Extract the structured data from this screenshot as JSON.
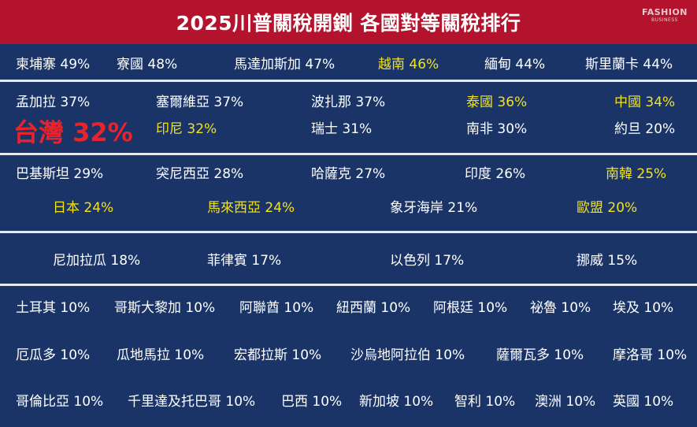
{
  "header": {
    "title": "2025川普關稅開鍘 各國對等關稅排行",
    "logo_line1": "FASHION",
    "logo_line2": "BUSINESS"
  },
  "colors": {
    "header_bg": "#b3132c",
    "panel_bg": "#1b3468",
    "highlight_yellow": "#f2e21b",
    "taiwan_red": "#e8232b",
    "divider": "#e6ebf2"
  },
  "sections": [
    {
      "rows": [
        [
          {
            "label": "柬埔寨 49%",
            "highlight": false
          },
          {
            "label": "寮國 48%",
            "highlight": false
          },
          {
            "label": "馬達加斯加 47%",
            "highlight": false
          },
          {
            "label": "越南 46%",
            "highlight": true
          },
          {
            "label": "緬甸 44%",
            "highlight": false
          },
          {
            "label": "斯里蘭卡 44%",
            "highlight": false
          }
        ]
      ]
    },
    {
      "rows": [
        [
          {
            "label": "孟加拉 37%",
            "highlight": false
          },
          {
            "label": "塞爾維亞 37%",
            "highlight": false
          },
          {
            "label": "波扎那 37%",
            "highlight": false
          },
          {
            "label": "泰國 36%",
            "highlight": true
          },
          {
            "label": "中國 34%",
            "highlight": true
          }
        ],
        [
          {
            "label": "台灣 32%",
            "highlight": false,
            "big": true
          },
          {
            "label": "印尼 32%",
            "highlight": true
          },
          {
            "label": "瑞士 31%",
            "highlight": false
          },
          {
            "label": "南非 30%",
            "highlight": false
          },
          {
            "label": "約旦 20%",
            "highlight": false
          }
        ]
      ]
    },
    {
      "rows": [
        [
          {
            "label": "巴基斯坦 29%",
            "highlight": false
          },
          {
            "label": "突尼西亞 28%",
            "highlight": false
          },
          {
            "label": "哈薩克 27%",
            "highlight": false
          },
          {
            "label": "印度 26%",
            "highlight": false
          },
          {
            "label": "南韓 25%",
            "highlight": true
          }
        ],
        [
          {
            "label": "日本 24%",
            "highlight": true
          },
          {
            "label": "馬來西亞 24%",
            "highlight": true
          },
          {
            "label": "象牙海岸 21%",
            "highlight": false
          },
          {
            "label": "歐盟 20%",
            "highlight": true
          }
        ]
      ]
    },
    {
      "rows": [
        [
          {
            "label": "尼加拉瓜 18%",
            "highlight": false
          },
          {
            "label": "菲律賓 17%",
            "highlight": false
          },
          {
            "label": "以色列 17%",
            "highlight": false
          },
          {
            "label": "挪威 15%",
            "highlight": false
          }
        ]
      ]
    },
    {
      "rows": [
        [
          {
            "label": "土耳其 10%",
            "highlight": false
          },
          {
            "label": "哥斯大黎加 10%",
            "highlight": false
          },
          {
            "label": "阿聯酋 10%",
            "highlight": false
          },
          {
            "label": "紐西蘭 10%",
            "highlight": false
          },
          {
            "label": "阿根廷 10%",
            "highlight": false
          },
          {
            "label": "祕魯 10%",
            "highlight": false
          },
          {
            "label": "埃及 10%",
            "highlight": false
          }
        ],
        [
          {
            "label": "厄瓜多 10%",
            "highlight": false
          },
          {
            "label": "瓜地馬拉 10%",
            "highlight": false
          },
          {
            "label": "宏都拉斯 10%",
            "highlight": false
          },
          {
            "label": "沙烏地阿拉伯 10%",
            "highlight": false
          },
          {
            "label": "薩爾瓦多 10%",
            "highlight": false
          },
          {
            "label": "摩洛哥 10%",
            "highlight": false
          }
        ],
        [
          {
            "label": "哥倫比亞 10%",
            "highlight": false
          },
          {
            "label": "千里達及托巴哥 10%",
            "highlight": false
          },
          {
            "label": "巴西 10%",
            "highlight": false
          },
          {
            "label": "新加坡 10%",
            "highlight": false
          },
          {
            "label": "智利 10%",
            "highlight": false
          },
          {
            "label": "澳洲 10%",
            "highlight": false
          },
          {
            "label": "英國 10%",
            "highlight": false
          }
        ]
      ]
    }
  ]
}
